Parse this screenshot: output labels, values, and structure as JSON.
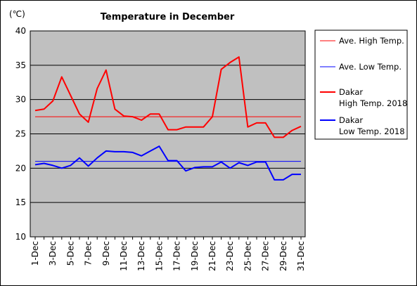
{
  "chart_data": {
    "type": "line",
    "title": "Temperature in December",
    "unit_label": "(℃)",
    "ylim": [
      10,
      40
    ],
    "yticks": [
      10,
      15,
      20,
      25,
      30,
      35,
      40
    ],
    "categories": [
      "1-Dec",
      "2-Dec",
      "3-Dec",
      "4-Dec",
      "5-Dec",
      "6-Dec",
      "7-Dec",
      "8-Dec",
      "9-Dec",
      "10-Dec",
      "11-Dec",
      "12-Dec",
      "13-Dec",
      "14-Dec",
      "15-Dec",
      "16-Dec",
      "17-Dec",
      "18-Dec",
      "19-Dec",
      "20-Dec",
      "21-Dec",
      "22-Dec",
      "23-Dec",
      "24-Dec",
      "25-Dec",
      "26-Dec",
      "27-Dec",
      "28-Dec",
      "29-Dec",
      "30-Dec",
      "31-Dec"
    ],
    "x_tick_labels": [
      "1-Dec",
      "",
      "3-Dec",
      "",
      "5-Dec",
      "",
      "7-Dec",
      "",
      "9-Dec",
      "",
      "11-Dec",
      "",
      "13-Dec",
      "",
      "15-Dec",
      "",
      "17-Dec",
      "",
      "19-Dec",
      "",
      "21-Dec",
      "",
      "23-Dec",
      "",
      "25-Dec",
      "",
      "27-Dec",
      "",
      "29-Dec",
      "",
      "31-Dec"
    ],
    "grid": true,
    "legend_position": "right",
    "series": [
      {
        "name": "Ave. High Temp.",
        "color": "#ff0000",
        "values": [
          27.5,
          27.5,
          27.5,
          27.5,
          27.5,
          27.5,
          27.5,
          27.5,
          27.5,
          27.5,
          27.5,
          27.5,
          27.5,
          27.5,
          27.5,
          27.5,
          27.5,
          27.5,
          27.5,
          27.5,
          27.5,
          27.5,
          27.5,
          27.5,
          27.5,
          27.5,
          27.5,
          27.5,
          27.5,
          27.5,
          27.5
        ]
      },
      {
        "name": "Ave. Low Temp.",
        "color": "#0000ff",
        "values": [
          21.0,
          21.0,
          21.0,
          21.0,
          21.0,
          21.0,
          21.0,
          21.0,
          21.0,
          21.0,
          21.0,
          21.0,
          21.0,
          21.0,
          21.0,
          21.0,
          21.0,
          21.0,
          21.0,
          21.0,
          21.0,
          21.0,
          21.0,
          21.0,
          21.0,
          21.0,
          21.0,
          21.0,
          21.0,
          21.0,
          21.0
        ]
      },
      {
        "name": "Dakar High Temp. 2018",
        "legend_lines": [
          "Dakar",
          "High Temp. 2018"
        ],
        "color": "#ff0000",
        "values": [
          28.4,
          28.6,
          29.8,
          33.3,
          30.6,
          27.9,
          26.7,
          31.6,
          34.3,
          28.6,
          27.6,
          27.5,
          27.0,
          27.9,
          27.9,
          25.6,
          25.6,
          26.0,
          26.0,
          26.0,
          27.5,
          34.4,
          35.4,
          36.2,
          26.0,
          26.6,
          26.6,
          24.5,
          24.5,
          25.5,
          26.1
        ]
      },
      {
        "name": "Dakar Low Temp. 2018",
        "legend_lines": [
          "Dakar",
          "Low Temp. 2018"
        ],
        "color": "#0000ff",
        "values": [
          20.5,
          20.7,
          20.4,
          20.0,
          20.4,
          21.5,
          20.3,
          21.5,
          22.5,
          22.4,
          22.4,
          22.3,
          21.8,
          22.5,
          23.2,
          21.1,
          21.1,
          19.6,
          20.1,
          20.2,
          20.2,
          20.9,
          20.0,
          20.8,
          20.4,
          20.9,
          20.9,
          18.3,
          18.3,
          19.1,
          19.1
        ]
      }
    ]
  }
}
